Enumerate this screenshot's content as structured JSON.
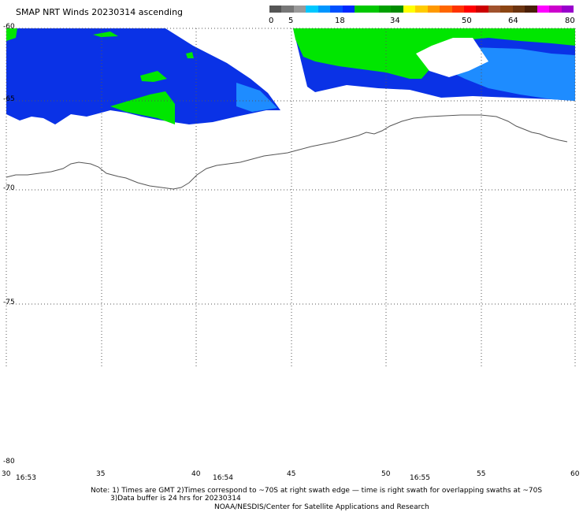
{
  "title": "SMAP NRT Winds 20230314 ascending",
  "colorbar": {
    "tick_labels": [
      "0",
      "5",
      "18",
      "34",
      "50",
      "64",
      "80"
    ],
    "colors": [
      "#555555",
      "#777777",
      "#999999",
      "#00c8ff",
      "#0096ff",
      "#0050ff",
      "#0028ff",
      "#00c800",
      "#00c800",
      "#00a000",
      "#008c00",
      "#ffff00",
      "#ffcc00",
      "#ff9900",
      "#ff6600",
      "#ff3300",
      "#ff0000",
      "#cc0000",
      "#a0522d",
      "#8b4513",
      "#6b3410",
      "#4a2008",
      "#ff00ff",
      "#cc00cc",
      "#9900cc"
    ]
  },
  "map": {
    "lat_labels": [
      "-60",
      "-65",
      "-70",
      "-75",
      "-80"
    ],
    "lon_labels": [
      "30",
      "35",
      "40",
      "45",
      "50",
      "55",
      "60"
    ],
    "time_labels": [
      "16:53",
      "16:54",
      "16:55"
    ],
    "colors": {
      "blue": "#0a32e6",
      "light_blue": "#1e8cff",
      "green": "#00e600",
      "coast": "#555555",
      "grid": "#555555"
    }
  },
  "notes": {
    "line1": "Note: 1) Times are GMT 2)Times correspond to ~70S at right swath edge — time is right swath for overlapping swaths at ~70S",
    "line2": "3)Data buffer is 24 hrs for 20230314",
    "line3": "NOAA/NESDIS/Center for Satellite Applications and Research"
  }
}
